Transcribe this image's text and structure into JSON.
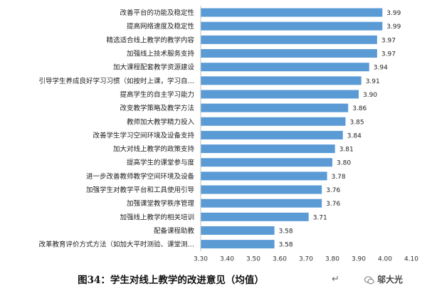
{
  "chart_data": {
    "type": "bar",
    "orientation": "horizontal",
    "categories": [
      "改善平台的功能及稳定性",
      "提高网络速度及稳定性",
      "精选适合线上教学的教学内容",
      "加强线上技术服务支持",
      "加大课程配套教学资源建设",
      "引导学生养成良好学习习惯（如按时上课，学习自…",
      "提高学生的自主学习能力",
      "改变教学策略及教学方法",
      "教师加大教学精力投入",
      "改善学生学习空间环境及设备支持",
      "加大对线上教学的政策支持",
      "提高学生的课堂参与度",
      "进一步改善教师教学空间环境及设备",
      "加强学生对教学平台和工具使用引导",
      "加强课堂教学秩序管理",
      "加强线上教学的相关培训",
      "配备课程助教",
      "改革教育评价方式方法（如加大平时测验、课堂测…"
    ],
    "values": [
      3.99,
      3.99,
      3.97,
      3.97,
      3.94,
      3.91,
      3.9,
      3.86,
      3.85,
      3.84,
      3.81,
      3.8,
      3.78,
      3.76,
      3.76,
      3.71,
      3.58,
      3.58
    ],
    "value_labels": [
      "3.99",
      "3.99",
      "3.97",
      "3.97",
      "3.94",
      "3.91",
      "3.90",
      "3.86",
      "3.85",
      "3.84",
      "3.81",
      "3.80",
      "3.78",
      "3.76",
      "3.76",
      "3.71",
      "3.58",
      "3.58"
    ],
    "xlim": [
      3.3,
      4.1
    ],
    "xticks": [
      "3.30",
      "3.40",
      "3.50",
      "3.60",
      "3.70",
      "3.80",
      "3.90",
      "4.00",
      "4.10"
    ],
    "grid": false,
    "bar_color": "#5b9bd5"
  },
  "caption": {
    "title": "图34：学生对线上教学的改进意见（均值）",
    "mark": "↵"
  },
  "watermark": {
    "icon": "wechat-icon",
    "text": "邬大光"
  }
}
